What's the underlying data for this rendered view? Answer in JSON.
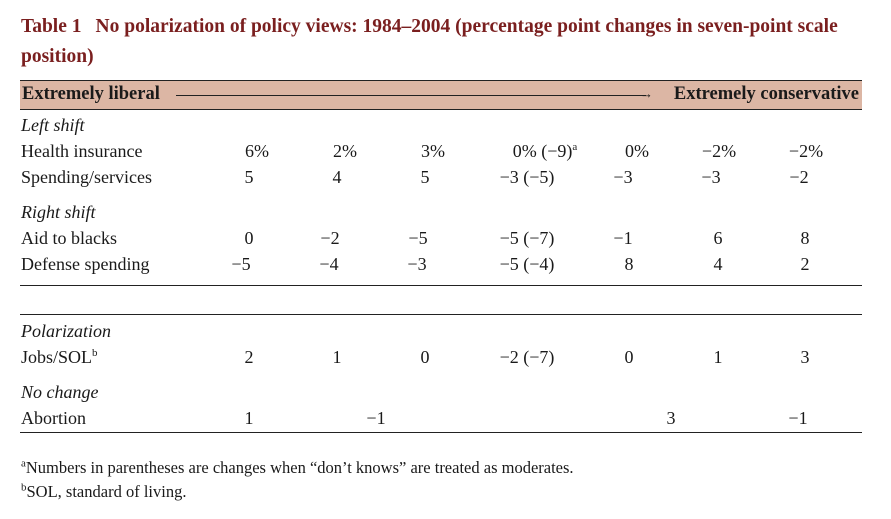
{
  "title": {
    "label": "Table 1",
    "text": "No polarization of policy views: 1984–2004 (percentage point changes in seven-point scale position)"
  },
  "header": {
    "left": "Extremely liberal",
    "right": "Extremely conservative"
  },
  "sections": [
    {
      "heading": "Left shift",
      "rows": [
        {
          "label": "Health insurance",
          "label_sup": "",
          "values": [
            "6%",
            "2%",
            "3%",
            "0% (−9)",
            "0%",
            "−2%",
            "−2%"
          ],
          "value_sups": [
            "",
            "",
            "",
            "a",
            "",
            "",
            ""
          ]
        },
        {
          "label": "Spending/services",
          "label_sup": "",
          "values": [
            "5",
            "4",
            "5",
            "−3 (−5)",
            "−3",
            "−3",
            "−2"
          ],
          "value_sups": [
            "",
            "",
            "",
            "",
            "",
            "",
            ""
          ]
        }
      ]
    },
    {
      "heading": "Right shift",
      "rows": [
        {
          "label": "Aid to blacks",
          "label_sup": "",
          "values": [
            "0",
            "−2",
            "−5",
            "−5 (−7)",
            "−1",
            "6",
            "8"
          ],
          "value_sups": [
            "",
            "",
            "",
            "",
            "",
            "",
            ""
          ]
        },
        {
          "label": "Defense spending",
          "label_sup": "",
          "values": [
            "−5",
            "−4",
            "−3",
            "−5 (−4)",
            "8",
            "4",
            "2"
          ],
          "value_sups": [
            "",
            "",
            "",
            "",
            "",
            "",
            ""
          ]
        }
      ]
    },
    {
      "heading": "Polarization",
      "rows": [
        {
          "label": "Jobs/SOL",
          "label_sup": "b",
          "values": [
            "2",
            "1",
            "0",
            "−2 (−7)",
            "0",
            "1",
            "3"
          ],
          "value_sups": [
            "",
            "",
            "",
            "",
            "",
            "",
            ""
          ]
        }
      ]
    },
    {
      "heading": "No change",
      "rows": [
        {
          "label": "Abortion",
          "label_sup": "",
          "values": [
            "1",
            "−1",
            "3",
            "−1"
          ],
          "value_sups": [
            "",
            "",
            "",
            ""
          ]
        }
      ]
    }
  ],
  "footnotes": [
    {
      "mark": "a",
      "text": "Numbers in parentheses are changes when “don’t knows” are treated as moderates."
    },
    {
      "mark": "b",
      "text": "SOL, standard of living."
    }
  ]
}
